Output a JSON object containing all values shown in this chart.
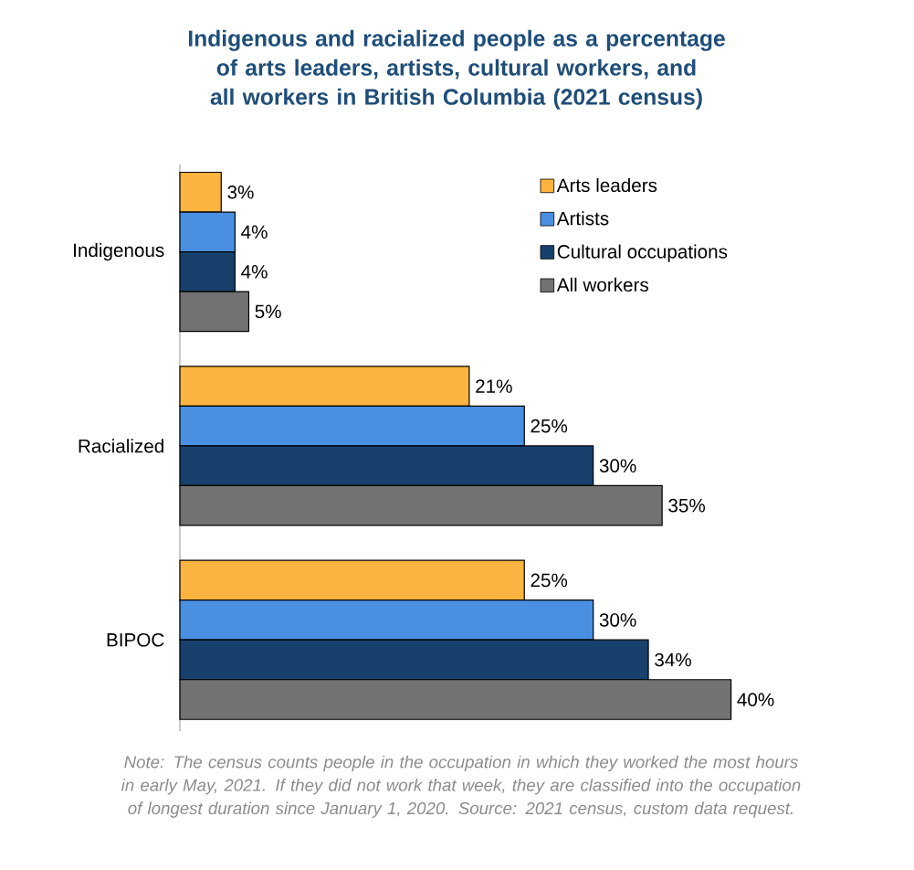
{
  "chart_data": {
    "type": "bar",
    "orientation": "horizontal",
    "title": "Indigenous and racialized people as a percentage of arts leaders, artists, cultural workers, and all workers in British Columbia (2021 census)",
    "categories": [
      "Indigenous",
      "Racialized",
      "BIPOC"
    ],
    "series": [
      {
        "name": "Arts leaders",
        "color": "#fbb43f",
        "values": [
          3,
          21,
          25
        ],
        "value_labels": [
          "3%",
          "21%",
          "25%"
        ]
      },
      {
        "name": "Artists",
        "color": "#4a90e2",
        "values": [
          4,
          25,
          30
        ],
        "value_labels": [
          "4%",
          "25%",
          "30%"
        ]
      },
      {
        "name": "Cultural occupations",
        "color": "#17406d",
        "values": [
          4,
          30,
          34
        ],
        "value_labels": [
          "4%",
          "30%",
          "34%"
        ]
      },
      {
        "name": "All workers",
        "color": "#727272",
        "values": [
          5,
          35,
          40
        ],
        "value_labels": [
          "5%",
          "35%",
          "40%"
        ]
      }
    ],
    "legend": "top right",
    "tick_labels": "y",
    "annotations": [
      "Note: The census counts people in the occupation in which they worked the most hours in early May, 2021. If they did not work that week, they are classified into the occupation of longest duration since January 1, 2020. Source: 2021 census, custom data request."
    ]
  }
}
